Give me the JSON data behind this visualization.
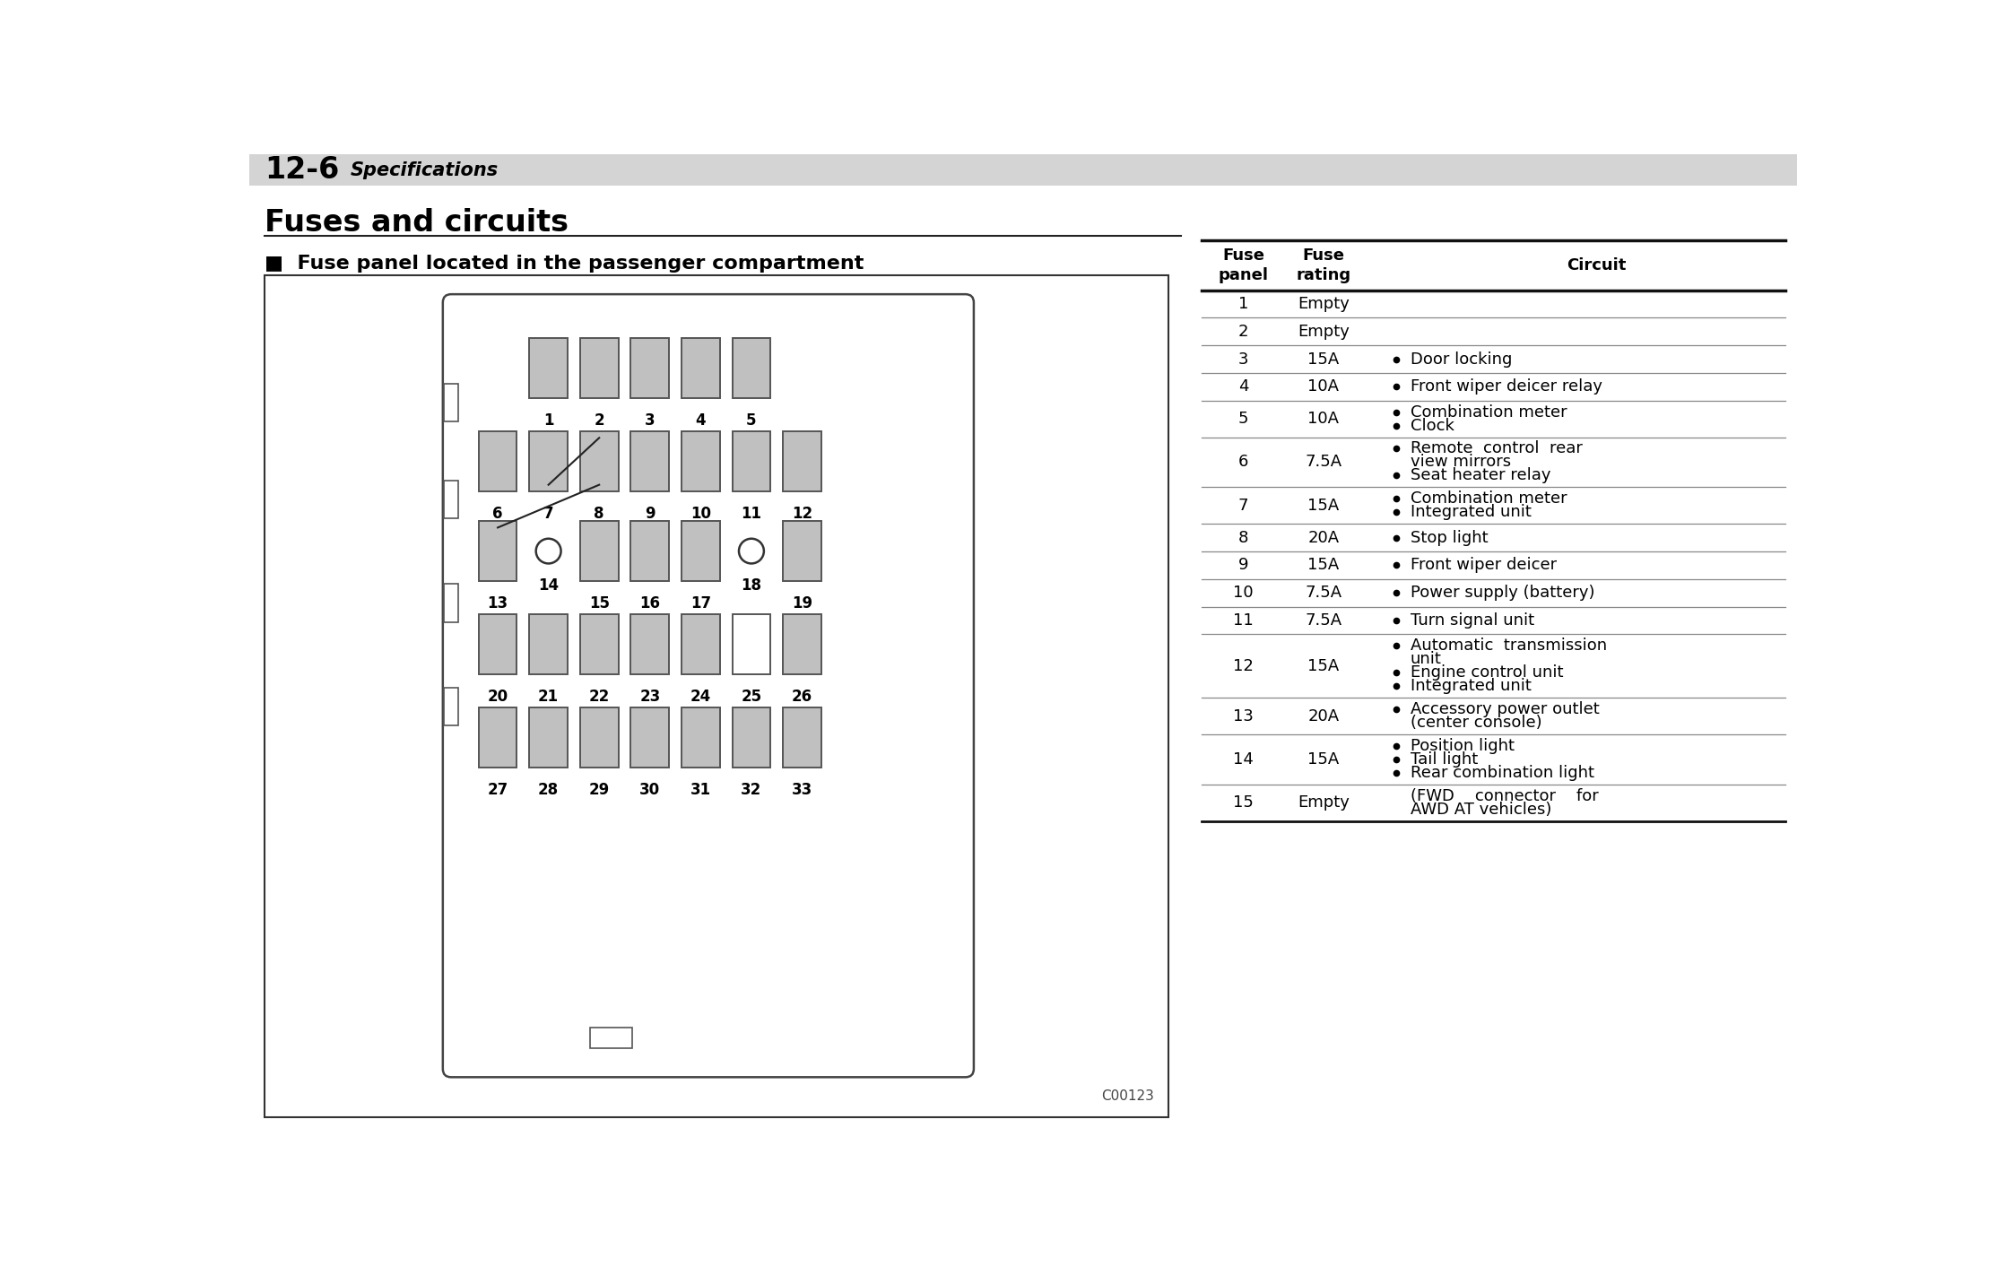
{
  "page_header_number": "12-6",
  "page_header_text": "Specifications",
  "section_title": "Fuses and circuits",
  "subsection_title": "■  Fuse panel located in the passenger compartment",
  "diagram_code": "C00123",
  "table_rows": [
    {
      "num": "1",
      "rating": "Empty",
      "circuit": "",
      "bullets": []
    },
    {
      "num": "2",
      "rating": "Empty",
      "circuit": "",
      "bullets": []
    },
    {
      "num": "3",
      "rating": "15A",
      "circuit": [
        [
          "Door locking"
        ]
      ],
      "bullets": [
        true
      ]
    },
    {
      "num": "4",
      "rating": "10A",
      "circuit": [
        [
          "Front wiper deicer relay"
        ]
      ],
      "bullets": [
        true
      ]
    },
    {
      "num": "5",
      "rating": "10A",
      "circuit": [
        [
          "Combination meter"
        ],
        [
          "Clock"
        ]
      ],
      "bullets": [
        true,
        true
      ]
    },
    {
      "num": "6",
      "rating": "7.5A",
      "circuit": [
        [
          "Remote  control  rear",
          "view mirrors"
        ],
        [
          "Seat heater relay"
        ]
      ],
      "bullets": [
        true,
        true
      ]
    },
    {
      "num": "7",
      "rating": "15A",
      "circuit": [
        [
          "Combination meter"
        ],
        [
          "Integrated unit"
        ]
      ],
      "bullets": [
        true,
        true
      ]
    },
    {
      "num": "8",
      "rating": "20A",
      "circuit": [
        [
          "Stop light"
        ]
      ],
      "bullets": [
        true
      ]
    },
    {
      "num": "9",
      "rating": "15A",
      "circuit": [
        [
          "Front wiper deicer"
        ]
      ],
      "bullets": [
        true
      ]
    },
    {
      "num": "10",
      "rating": "7.5A",
      "circuit": [
        [
          "Power supply (battery)"
        ]
      ],
      "bullets": [
        true
      ]
    },
    {
      "num": "11",
      "rating": "7.5A",
      "circuit": [
        [
          "Turn signal unit"
        ]
      ],
      "bullets": [
        true
      ]
    },
    {
      "num": "12",
      "rating": "15A",
      "circuit": [
        [
          "Automatic  transmission",
          "unit"
        ],
        [
          "Engine control unit"
        ],
        [
          "Integrated unit"
        ]
      ],
      "bullets": [
        true,
        true,
        true
      ]
    },
    {
      "num": "13",
      "rating": "20A",
      "circuit": [
        [
          "Accessory power outlet",
          "(center console)"
        ]
      ],
      "bullets": [
        true
      ]
    },
    {
      "num": "14",
      "rating": "15A",
      "circuit": [
        [
          "Position light"
        ],
        [
          "Tail light"
        ],
        [
          "Rear combination light"
        ]
      ],
      "bullets": [
        true,
        true,
        true
      ]
    },
    {
      "num": "15",
      "rating": "Empty",
      "circuit": [
        [
          "(FWD    connector    for",
          "AWD AT vehicles)"
        ]
      ],
      "bullets": [
        false
      ]
    }
  ],
  "bg_color": "#ffffff",
  "header_bg": "#d4d4d4",
  "fuse_fill": "#c0c0c0",
  "fuse_stroke": "#555555",
  "box_stroke": "#333333"
}
